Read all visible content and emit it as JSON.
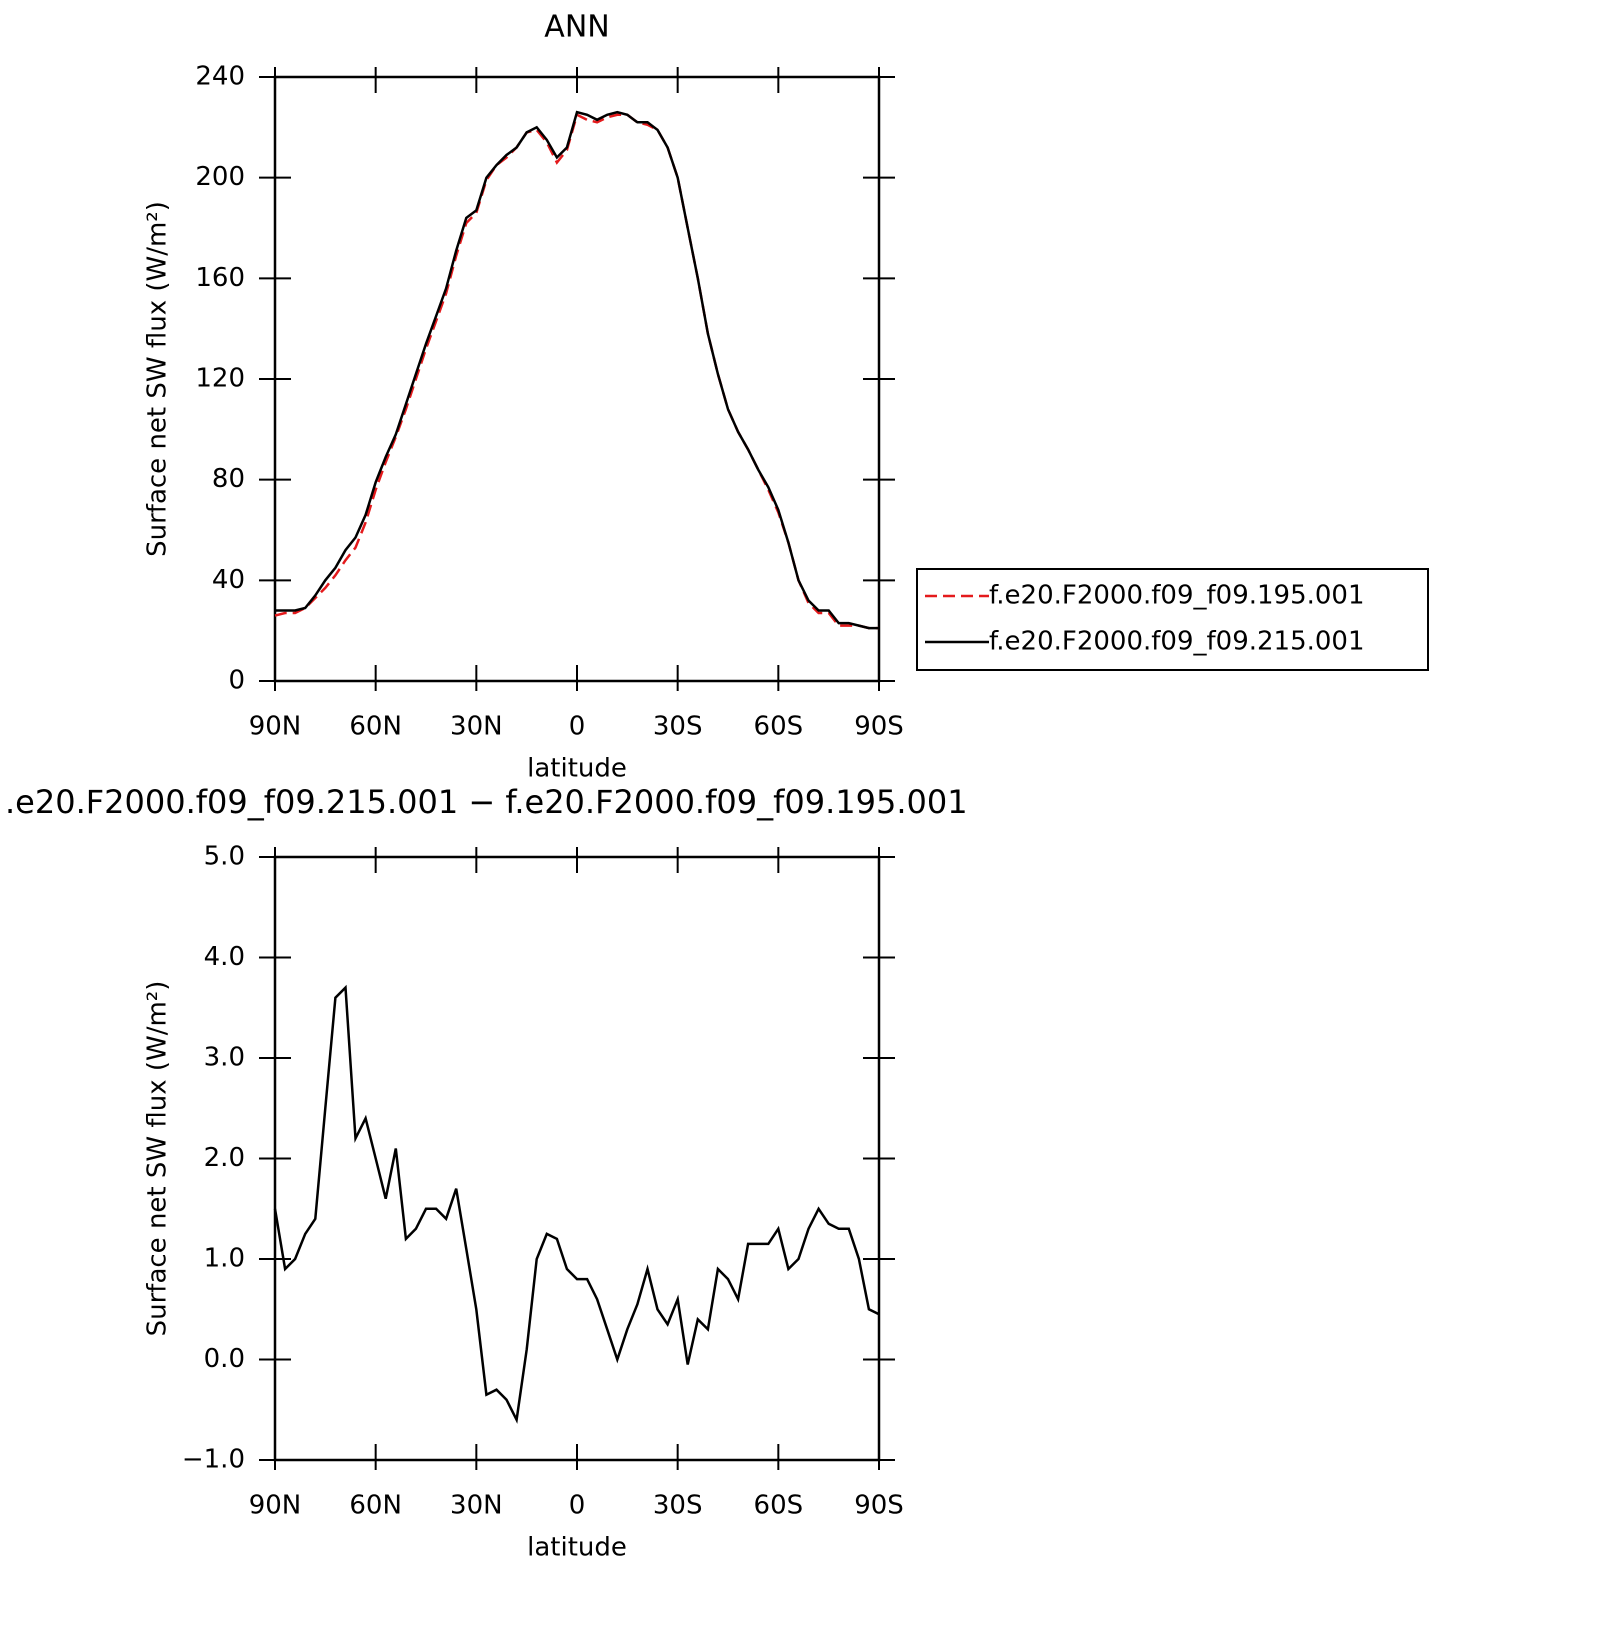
{
  "chart_data": [
    {
      "type": "line",
      "title": "ANN",
      "x_label": "latitude",
      "y_label": "Surface net SW flux (W/m²)",
      "x": [
        90,
        87,
        84,
        81,
        78,
        75,
        72,
        69,
        66,
        63,
        60,
        57,
        54,
        51,
        48,
        45,
        42,
        39,
        36,
        33,
        30,
        27,
        24,
        21,
        18,
        15,
        12,
        9,
        6,
        3,
        0,
        -3,
        -6,
        -9,
        -12,
        -15,
        -18,
        -21,
        -24,
        -27,
        -30,
        -33,
        -36,
        -39,
        -42,
        -45,
        -48,
        -51,
        -54,
        -57,
        -60,
        -63,
        -66,
        -69,
        -72,
        -75,
        -78,
        -81,
        -84,
        -87,
        -90
      ],
      "series": [
        {
          "name": "f.e20.F2000.f09_f09.195.001",
          "color": "#e41a1c",
          "dash": "dashed",
          "values": [
            26,
            27,
            27,
            29,
            33,
            37,
            42,
            48,
            53,
            63,
            76,
            87,
            97,
            108,
            120,
            132,
            143,
            154,
            169,
            182,
            186,
            199,
            205,
            208,
            212,
            218,
            219,
            214,
            206,
            211,
            225,
            223,
            222,
            224,
            225,
            225,
            222,
            221,
            219,
            212,
            200,
            180,
            160,
            138,
            122,
            108,
            99,
            92,
            84,
            76,
            67,
            55,
            40,
            31,
            27,
            27,
            22,
            22,
            22,
            21,
            21
          ]
        },
        {
          "name": "f.e20.F2000.f09_f09.215.001",
          "color": "#000000",
          "dash": "solid",
          "values": [
            28,
            28,
            28,
            29,
            34,
            40,
            45,
            52,
            57,
            66,
            79,
            89,
            98,
            110,
            122,
            134,
            145,
            156,
            171,
            184,
            187,
            200,
            205,
            209,
            212,
            218,
            220,
            215,
            208,
            212,
            226,
            225,
            223,
            225,
            226,
            225,
            222,
            222,
            219,
            212,
            200,
            180,
            160,
            138,
            122,
            108,
            99,
            92,
            84,
            77,
            68,
            55,
            40,
            32,
            28,
            28,
            23,
            23,
            22,
            21,
            21
          ]
        }
      ],
      "xlim": [
        90,
        -90
      ],
      "xticks": [
        {
          "value": 90,
          "label": "90N"
        },
        {
          "value": 60,
          "label": "60N"
        },
        {
          "value": 30,
          "label": "30N"
        },
        0,
        {
          "value": -30,
          "label": "30S"
        },
        {
          "value": -60,
          "label": "60S"
        },
        {
          "value": -90,
          "label": "90S"
        }
      ],
      "ylim": [
        0,
        240
      ],
      "yticks": [
        0,
        40,
        80,
        120,
        160,
        200,
        240
      ],
      "legend": "right"
    },
    {
      "type": "line",
      "title": ".e20.F2000.f09_f09.215.001 − f.e20.F2000.f09_f09.195.001",
      "x_label": "latitude",
      "y_label": "Surface net SW flux (W/m²)",
      "x": [
        90,
        87,
        84,
        81,
        78,
        75,
        72,
        69,
        66,
        63,
        60,
        57,
        54,
        51,
        48,
        45,
        42,
        39,
        36,
        33,
        30,
        27,
        24,
        21,
        18,
        15,
        12,
        9,
        6,
        3,
        0,
        -3,
        -6,
        -9,
        -12,
        -15,
        -18,
        -21,
        -24,
        -27,
        -30,
        -33,
        -36,
        -39,
        -42,
        -45,
        -48,
        -51,
        -54,
        -57,
        -60,
        -63,
        -66,
        -69,
        -72,
        -75,
        -78,
        -81,
        -84,
        -87,
        -90
      ],
      "values": [
        1.5,
        0.9,
        1.0,
        1.25,
        1.4,
        2.5,
        3.6,
        3.7,
        2.2,
        2.4,
        2.0,
        1.6,
        2.1,
        1.2,
        1.3,
        1.5,
        1.5,
        1.4,
        1.7,
        1.1,
        0.5,
        -0.35,
        -0.3,
        -0.4,
        -0.6,
        0.1,
        1.0,
        1.25,
        1.2,
        0.9,
        0.8,
        0.8,
        0.6,
        0.3,
        0.0,
        0.3,
        0.55,
        0.9,
        0.5,
        0.35,
        0.6,
        -0.05,
        0.4,
        0.3,
        0.9,
        0.8,
        0.6,
        1.15,
        1.15,
        1.15,
        1.3,
        0.9,
        1.0,
        1.3,
        1.5,
        1.35,
        1.3,
        1.3,
        1.0,
        0.5,
        0.45
      ],
      "color": "#000000",
      "xlim": [
        90,
        -90
      ],
      "xticks": [
        {
          "value": 90,
          "label": "90N"
        },
        {
          "value": 60,
          "label": "60N"
        },
        {
          "value": 30,
          "label": "30N"
        },
        0,
        {
          "value": -30,
          "label": "30S"
        },
        {
          "value": -60,
          "label": "60S"
        },
        {
          "value": -90,
          "label": "90S"
        }
      ],
      "ylim": [
        -1,
        5
      ],
      "yticks": [
        {
          "value": -1,
          "label": "−1.0"
        },
        {
          "value": 0,
          "label": "0.0"
        },
        {
          "value": 1,
          "label": "1.0"
        },
        {
          "value": 2,
          "label": "2.0"
        },
        {
          "value": 3,
          "label": "3.0"
        },
        {
          "value": 4,
          "label": "4.0"
        },
        {
          "value": 5,
          "label": "5.0"
        }
      ]
    }
  ]
}
